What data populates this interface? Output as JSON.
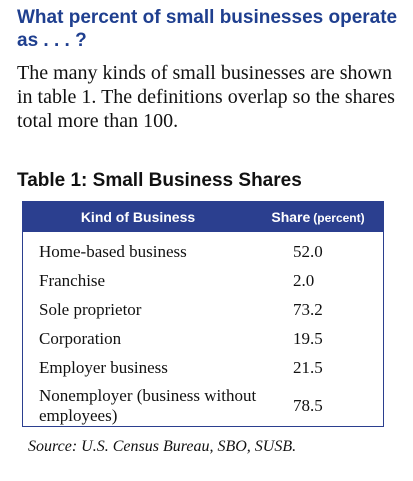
{
  "heading": {
    "question": "What percent of small businesses operate as . . . ?",
    "intro": "The many kinds of small businesses are shown in table 1. The definitions overlap so the shares total more than 100."
  },
  "table": {
    "title": "Table 1: Small Business Shares",
    "header": {
      "kind": "Kind of Business",
      "share": "Share",
      "share_unit": "(percent)"
    },
    "rows": [
      {
        "kind": "Home-based business",
        "share": "52.0"
      },
      {
        "kind": "Franchise",
        "share": "2.0"
      },
      {
        "kind": "Sole proprietor",
        "share": "73.2"
      },
      {
        "kind": "Corporation",
        "share": "19.5"
      },
      {
        "kind": "Employer business",
        "share": "21.5"
      },
      {
        "kind": "Nonemployer (business without employees)",
        "share": "78.5"
      }
    ]
  },
  "source": "Source: U.S. Census Bureau, SBO, SUSB.",
  "colors": {
    "heading": "#1f3f8f",
    "table_header_bg": "#2b3f8f"
  }
}
